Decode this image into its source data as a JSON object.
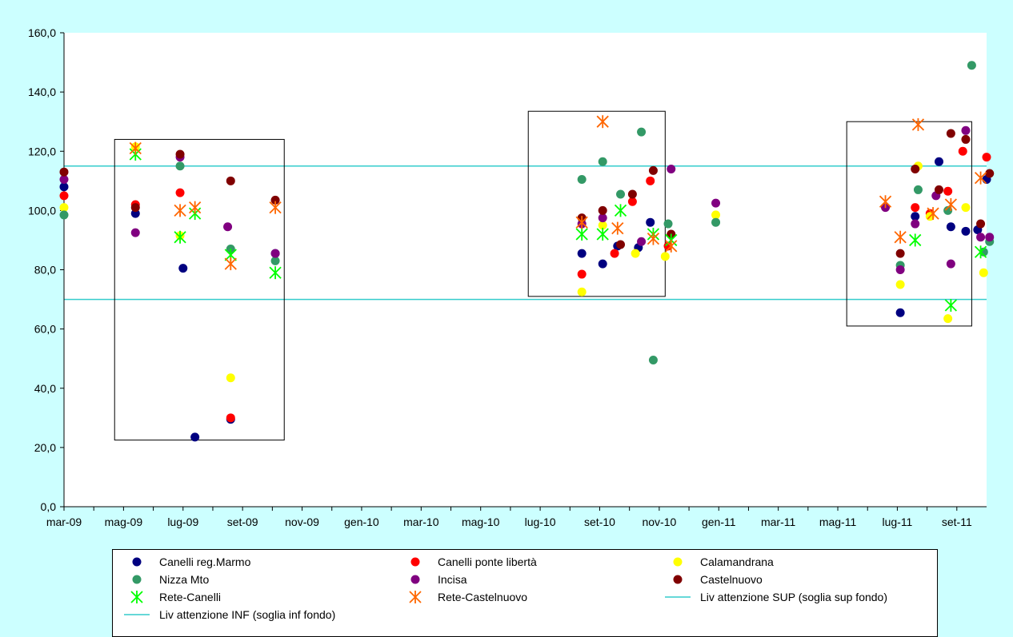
{
  "chart_data": {
    "type": "scatter",
    "title": "",
    "xlabel": "",
    "ylabel": "",
    "ylim": [
      0,
      160
    ],
    "yticks": [
      "0,0",
      "20,0",
      "40,0",
      "60,0",
      "80,0",
      "100,0",
      "120,0",
      "140,0",
      "160,0"
    ],
    "xticks": [
      "mar-09",
      "mag-09",
      "lug-09",
      "set-09",
      "nov-09",
      "gen-10",
      "mar-10",
      "mag-10",
      "lug-10",
      "set-10",
      "nov-10",
      "gen-11",
      "mar-11",
      "mag-11",
      "lug-11",
      "set-11"
    ],
    "x_unit": "months since mar-09 (tick labels every 2 months)",
    "xlim": [
      0,
      31
    ],
    "grid": false,
    "legend_position": "bottom",
    "thresholds": [
      {
        "name": "Liv attenzione SUP (soglia sup fondo)",
        "value": 115,
        "color": "#33cccc"
      },
      {
        "name": "Liv attenzione INF (soglia inf fondo)",
        "value": 70,
        "color": "#33cccc"
      }
    ],
    "boxes": [
      {
        "x0": 1.7,
        "x1": 7.4,
        "y0": 22.5,
        "y1": 124
      },
      {
        "x0": 15.6,
        "x1": 20.2,
        "y0": 71,
        "y1": 133.5
      },
      {
        "x0": 26.3,
        "x1": 30.5,
        "y0": 61,
        "y1": 130
      }
    ],
    "series": [
      {
        "name": "Canelli reg.Marmo",
        "marker": "circle",
        "color": "#000080",
        "points": [
          [
            0,
            108
          ],
          [
            2.4,
            99
          ],
          [
            4,
            80.5
          ],
          [
            4.4,
            23.5
          ],
          [
            5.6,
            29.5
          ],
          [
            7.1,
            85.5
          ],
          [
            17.4,
            85.5
          ],
          [
            18.1,
            82
          ],
          [
            18.6,
            88
          ],
          [
            19.3,
            87.5
          ],
          [
            19.7,
            96
          ],
          [
            28.1,
            65.5
          ],
          [
            28.6,
            98
          ],
          [
            29.4,
            116.5
          ],
          [
            29.8,
            94.5
          ],
          [
            30.3,
            93
          ],
          [
            30.7,
            93.5
          ],
          [
            31,
            110.5
          ]
        ]
      },
      {
        "name": "Canelli ponte libertà",
        "marker": "circle",
        "color": "#ff0000",
        "points": [
          [
            0,
            105
          ],
          [
            2.4,
            102
          ],
          [
            3.9,
            106
          ],
          [
            5.6,
            30
          ],
          [
            17.4,
            78.5
          ],
          [
            18.5,
            85.5
          ],
          [
            19.1,
            103
          ],
          [
            19.7,
            110
          ],
          [
            20.3,
            88
          ],
          [
            28.6,
            101
          ],
          [
            29.1,
            99
          ],
          [
            29.7,
            106.5
          ],
          [
            30.2,
            120
          ],
          [
            31,
            118
          ]
        ]
      },
      {
        "name": "Calamandrana",
        "marker": "circle",
        "color": "#ffff00",
        "points": [
          [
            0,
            101
          ],
          [
            2.4,
            121.5
          ],
          [
            3.9,
            91.5
          ],
          [
            5.6,
            43.5
          ],
          [
            17.4,
            72.5
          ],
          [
            18.1,
            95
          ],
          [
            19.2,
            85.5
          ],
          [
            20.2,
            84.5
          ],
          [
            21.9,
            98.5
          ],
          [
            28.1,
            75
          ],
          [
            28.7,
            115
          ],
          [
            29.1,
            98
          ],
          [
            29.7,
            63.5
          ],
          [
            30.3,
            101
          ],
          [
            30.9,
            79
          ]
        ]
      },
      {
        "name": "Nizza Mto",
        "marker": "circle",
        "color": "#339966",
        "points": [
          [
            0,
            98.5
          ],
          [
            3.9,
            115
          ],
          [
            5.6,
            87
          ],
          [
            7.1,
            83
          ],
          [
            17.4,
            110.5
          ],
          [
            18.1,
            116.5
          ],
          [
            18.7,
            105.5
          ],
          [
            19.4,
            126.5
          ],
          [
            19.8,
            49.5
          ],
          [
            20.3,
            95.5
          ],
          [
            21.9,
            96
          ],
          [
            28.1,
            81.5
          ],
          [
            28.7,
            107
          ],
          [
            29.7,
            100
          ],
          [
            30.5,
            149
          ],
          [
            30.9,
            86
          ],
          [
            31.1,
            89.5
          ]
        ]
      },
      {
        "name": "Incisa",
        "marker": "circle",
        "color": "#800080",
        "points": [
          [
            0,
            110.5
          ],
          [
            2.4,
            92.5
          ],
          [
            3.9,
            118
          ],
          [
            5.5,
            94.5
          ],
          [
            7.1,
            85.5
          ],
          [
            17.4,
            95.5
          ],
          [
            18.1,
            97.5
          ],
          [
            19.4,
            89.5
          ],
          [
            20.4,
            114
          ],
          [
            21.9,
            102.5
          ],
          [
            27.6,
            101
          ],
          [
            28.1,
            80
          ],
          [
            28.6,
            95.5
          ],
          [
            29.3,
            105
          ],
          [
            29.8,
            82
          ],
          [
            30.3,
            127
          ],
          [
            30.8,
            91
          ],
          [
            31.1,
            91
          ]
        ]
      },
      {
        "name": "Castelnuovo",
        "marker": "circle",
        "color": "#800000",
        "points": [
          [
            0,
            113
          ],
          [
            2.4,
            101
          ],
          [
            3.9,
            119
          ],
          [
            5.6,
            110
          ],
          [
            7.1,
            103.5
          ],
          [
            17.4,
            97.5
          ],
          [
            18.1,
            100
          ],
          [
            18.7,
            88.5
          ],
          [
            19.1,
            105.5
          ],
          [
            19.8,
            113.5
          ],
          [
            20.4,
            92
          ],
          [
            28.1,
            85.5
          ],
          [
            28.6,
            114
          ],
          [
            29.4,
            107
          ],
          [
            29.8,
            126
          ],
          [
            30.3,
            124
          ],
          [
            30.8,
            95.5
          ],
          [
            31.1,
            112.5
          ]
        ]
      },
      {
        "name": "Rete-Canelli",
        "marker": "star",
        "color": "#00ff00",
        "points": [
          [
            2.4,
            119
          ],
          [
            3.9,
            91
          ],
          [
            4.4,
            99
          ],
          [
            5.6,
            85
          ],
          [
            7.1,
            79
          ],
          [
            17.4,
            92
          ],
          [
            18.1,
            92
          ],
          [
            18.7,
            100
          ],
          [
            19.8,
            92
          ],
          [
            20.4,
            90
          ],
          [
            28.6,
            90
          ],
          [
            29.8,
            68
          ],
          [
            30.8,
            86
          ]
        ]
      },
      {
        "name": "Rete-Castelnuovo",
        "marker": "star",
        "color": "#ff6600",
        "points": [
          [
            2.4,
            121
          ],
          [
            3.9,
            100
          ],
          [
            4.4,
            101
          ],
          [
            5.6,
            82
          ],
          [
            7.1,
            101
          ],
          [
            17.4,
            96
          ],
          [
            18.1,
            130
          ],
          [
            18.6,
            94
          ],
          [
            19.8,
            90.5
          ],
          [
            20.4,
            88
          ],
          [
            27.6,
            103
          ],
          [
            28.1,
            91
          ],
          [
            28.7,
            129
          ],
          [
            29.2,
            99
          ],
          [
            29.8,
            102
          ],
          [
            30.8,
            111
          ]
        ]
      }
    ]
  },
  "legend": [
    {
      "label": "Canelli reg.Marmo",
      "marker": "circle",
      "color": "#000080"
    },
    {
      "label": "Canelli ponte libertà",
      "marker": "circle",
      "color": "#ff0000"
    },
    {
      "label": "Calamandrana",
      "marker": "circle",
      "color": "#ffff00"
    },
    {
      "label": "Nizza Mto",
      "marker": "circle",
      "color": "#339966"
    },
    {
      "label": "Incisa",
      "marker": "circle",
      "color": "#800080"
    },
    {
      "label": "Castelnuovo",
      "marker": "circle",
      "color": "#800000"
    },
    {
      "label": "Rete-Canelli",
      "marker": "star",
      "color": "#00ff00"
    },
    {
      "label": "Rete-Castelnuovo",
      "marker": "star",
      "color": "#ff6600"
    },
    {
      "label": "Liv attenzione SUP (soglia sup fondo)",
      "marker": "line",
      "color": "#33cccc"
    },
    {
      "label": "Liv attenzione INF (soglia inf fondo)",
      "marker": "line",
      "color": "#33cccc"
    }
  ]
}
